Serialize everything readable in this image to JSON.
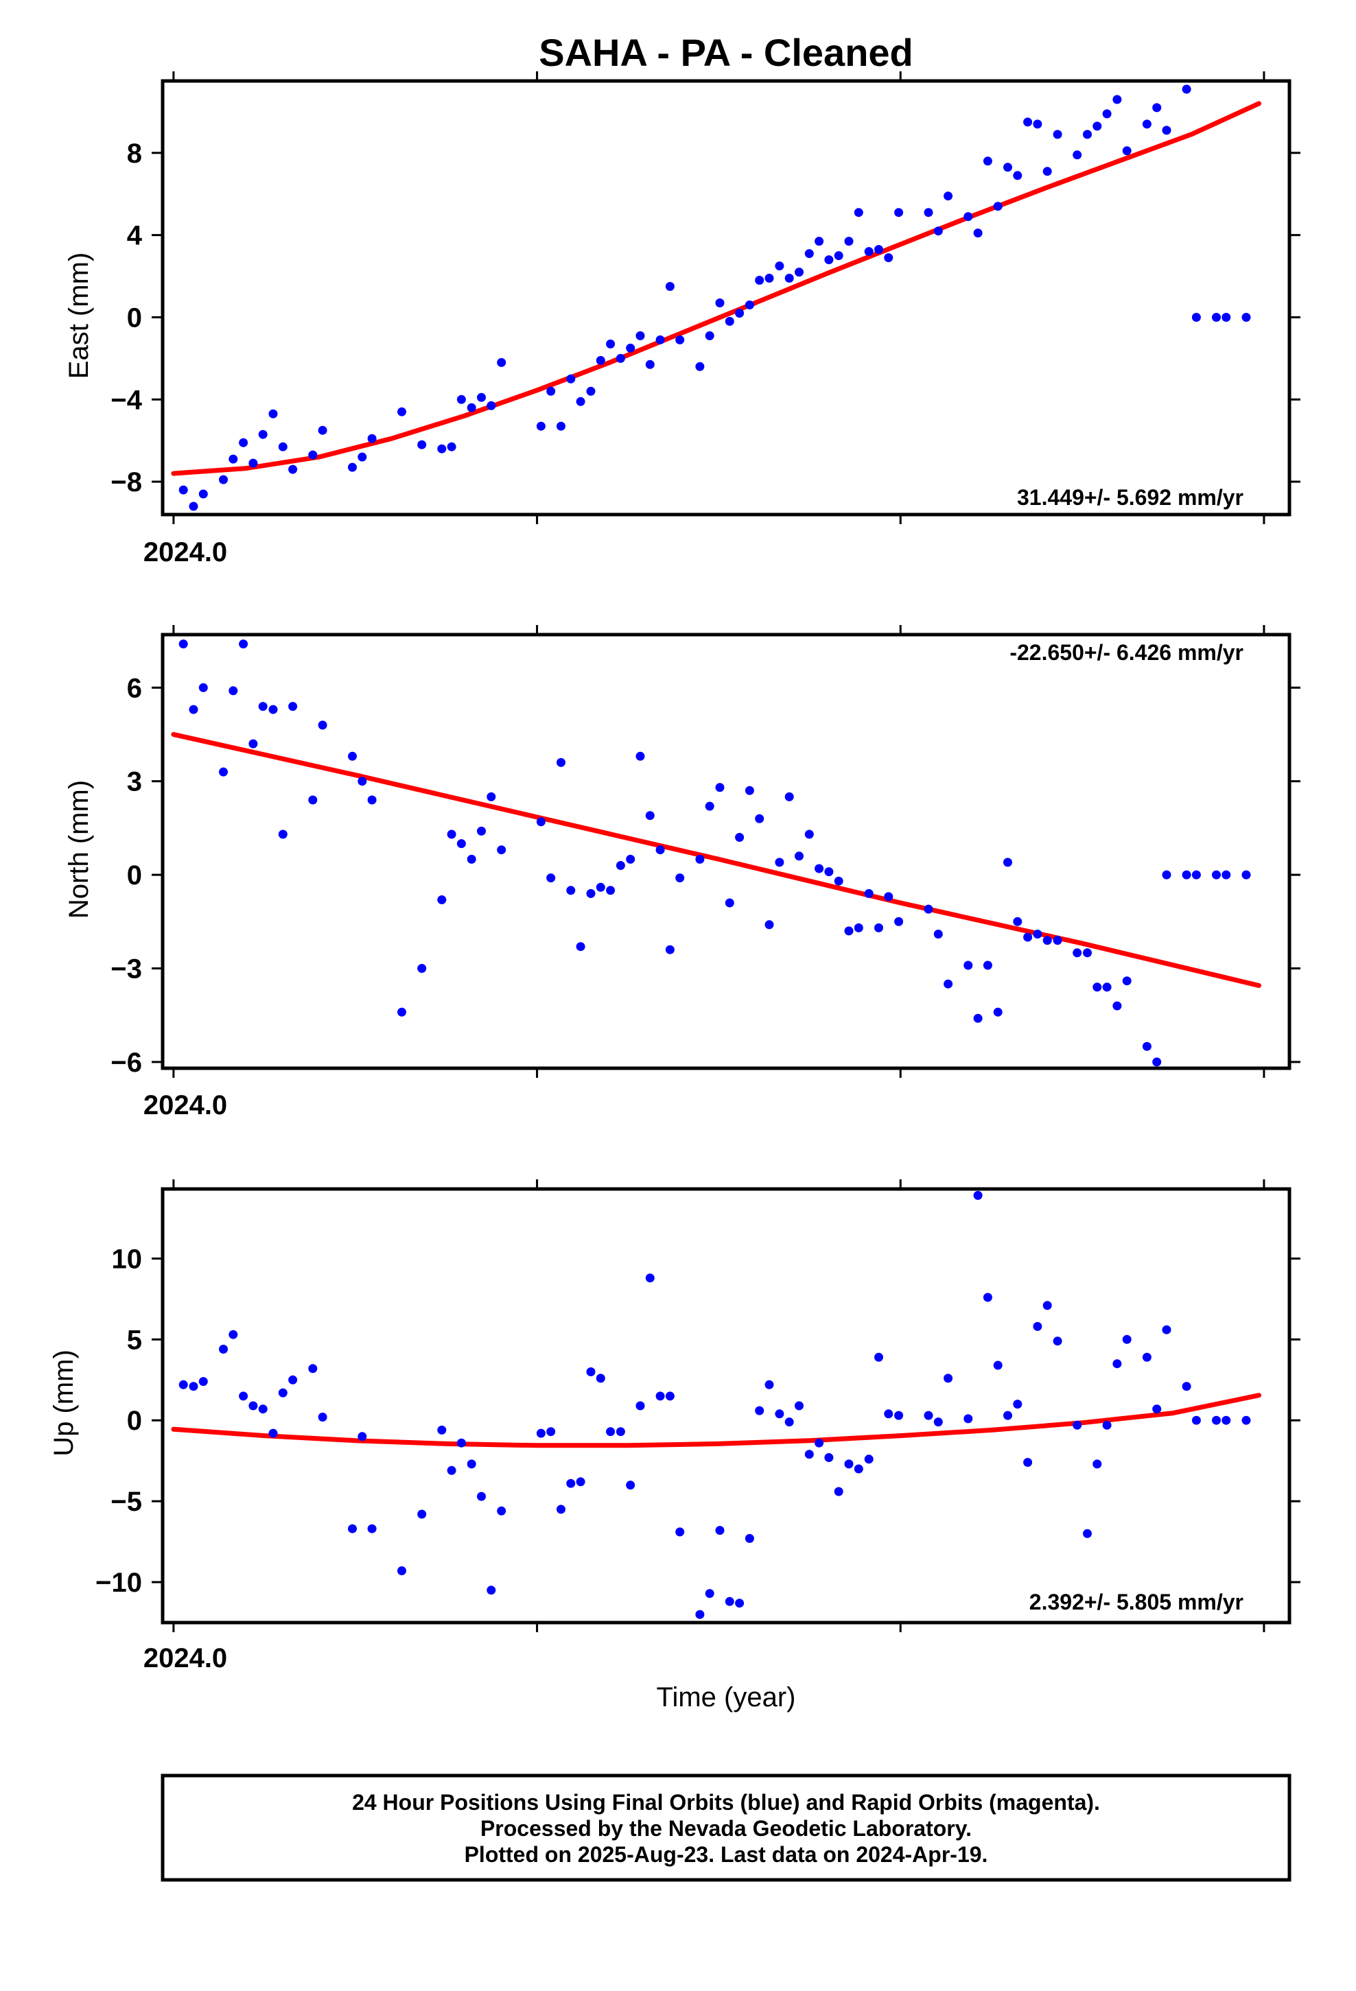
{
  "title": "SAHA  - PA - Cleaned",
  "xlabel": "Time (year)",
  "footer": [
    "24 Hour Positions Using Final Orbits (blue) and Rapid Orbits (magenta).",
    "Processed by the Nevada Geodetic Laboratory.",
    "Plotted on 2025-Aug-23. Last data on 2024-Apr-19."
  ],
  "colors": {
    "points": "#0000ff",
    "fit": "#ff0000",
    "frame": "#000000"
  },
  "chart_data": [
    {
      "type": "scatter",
      "ylabel": "East (mm)",
      "rate": "31.449+/- 5.692 mm/yr",
      "xlim": [
        2023.997,
        2024.307
      ],
      "ylim": [
        -9.6,
        11.5
      ],
      "x_tick_label": "2024.0",
      "y_ticks": [
        -8,
        -4,
        0,
        4,
        8
      ],
      "y_tick_labels": [
        "−8",
        "−4",
        "0",
        "4",
        "8"
      ],
      "series": [
        {
          "kind": "points",
          "x": [
            2024.0027,
            2024.0055,
            2024.0082,
            2024.0137,
            2024.0164,
            2024.0192,
            2024.0219,
            2024.0246,
            2024.0274,
            2024.0301,
            2024.0328,
            2024.0383,
            2024.041,
            2024.0492,
            2024.0519,
            2024.0546,
            2024.0628,
            2024.0683,
            2024.0738,
            2024.0765,
            2024.0792,
            2024.082,
            2024.0847,
            2024.0874,
            2024.0902,
            2024.1011,
            2024.1038,
            2024.1066,
            2024.1093,
            2024.112,
            2024.1148,
            2024.1175,
            2024.1202,
            2024.123,
            2024.1257,
            2024.1284,
            2024.1311,
            2024.1339,
            2024.1366,
            2024.1393,
            2024.1448,
            2024.1475,
            2024.1503,
            2024.153,
            2024.1557,
            2024.1585,
            2024.1612,
            2024.1639,
            2024.1667,
            2024.1694,
            2024.1721,
            2024.1749,
            2024.1776,
            2024.1803,
            2024.183,
            2024.1858,
            2024.1885,
            2024.1913,
            2024.194,
            2024.1967,
            2024.1995,
            2024.2077,
            2024.2104,
            2024.2131,
            2024.2186,
            2024.2213,
            2024.224,
            2024.2268,
            2024.2295,
            2024.2322,
            2024.235,
            2024.2377,
            2024.2404,
            2024.2432,
            2024.2486,
            2024.2514,
            2024.2541,
            2024.2568,
            2024.2596,
            2024.2623,
            2024.2678,
            2024.2705,
            2024.2732,
            2024.2787,
            2024.2814,
            2024.2869,
            2024.2896,
            2024.2951
          ],
          "y": [
            -8.4,
            -9.2,
            -8.6,
            -7.9,
            -6.9,
            -6.1,
            -7.1,
            -5.7,
            -4.7,
            -6.3,
            -7.4,
            -6.7,
            -5.5,
            -7.3,
            -6.8,
            -5.9,
            -4.6,
            -6.2,
            -6.4,
            -6.3,
            -4.0,
            -4.4,
            -3.9,
            -4.3,
            -2.2,
            -5.3,
            -3.6,
            -5.3,
            -3.0,
            -4.1,
            -3.6,
            -2.1,
            -1.3,
            -2.0,
            -1.5,
            -0.9,
            -2.3,
            -1.1,
            1.5,
            -1.1,
            -2.4,
            -0.9,
            0.7,
            -0.2,
            0.2,
            0.6,
            1.8,
            1.9,
            2.5,
            1.9,
            2.2,
            3.1,
            3.7,
            2.8,
            3.0,
            3.7,
            5.1,
            3.2,
            3.3,
            2.9,
            5.1,
            5.1,
            4.2,
            5.9,
            4.9,
            4.1,
            7.6,
            5.4,
            7.3,
            6.9,
            9.5,
            9.4,
            7.1,
            8.9,
            7.9,
            8.9,
            9.3,
            9.9,
            10.6,
            8.1,
            9.4,
            10.2,
            9.1,
            11.1,
            0,
            0,
            0,
            0
          ],
          "color": "#0000ff"
        },
        {
          "kind": "fit",
          "x": [
            2024.0,
            2024.02,
            2024.04,
            2024.06,
            2024.08,
            2024.1,
            2024.12,
            2024.14,
            2024.16,
            2024.18,
            2024.2,
            2024.22,
            2024.24,
            2024.26,
            2024.28,
            2024.2986
          ],
          "y": [
            -7.6,
            -7.35,
            -6.8,
            -5.9,
            -4.8,
            -3.55,
            -2.2,
            -0.75,
            0.7,
            2.15,
            3.55,
            4.95,
            6.3,
            7.6,
            8.9,
            10.4
          ],
          "color": "#ff0000"
        }
      ]
    },
    {
      "type": "scatter",
      "ylabel": "North (mm)",
      "rate": "-22.650+/- 6.426 mm/yr",
      "xlim": [
        2023.997,
        2024.307
      ],
      "ylim": [
        -6.2,
        7.7
      ],
      "x_tick_label": "2024.0",
      "y_ticks": [
        -6,
        -3,
        0,
        3,
        6
      ],
      "y_tick_labels": [
        "−6",
        "−3",
        "0",
        "3",
        "6"
      ],
      "series": [
        {
          "kind": "points",
          "x": [
            2024.0027,
            2024.0055,
            2024.0082,
            2024.0137,
            2024.0164,
            2024.0192,
            2024.0219,
            2024.0246,
            2024.0274,
            2024.0301,
            2024.0328,
            2024.0383,
            2024.041,
            2024.0492,
            2024.0519,
            2024.0546,
            2024.0628,
            2024.0683,
            2024.0738,
            2024.0765,
            2024.0792,
            2024.082,
            2024.0847,
            2024.0874,
            2024.0902,
            2024.1011,
            2024.1038,
            2024.1066,
            2024.1093,
            2024.112,
            2024.1148,
            2024.1175,
            2024.1202,
            2024.123,
            2024.1257,
            2024.1284,
            2024.1311,
            2024.1339,
            2024.1366,
            2024.1393,
            2024.1448,
            2024.1475,
            2024.1503,
            2024.153,
            2024.1557,
            2024.1585,
            2024.1612,
            2024.1639,
            2024.1667,
            2024.1694,
            2024.1721,
            2024.1749,
            2024.1776,
            2024.1803,
            2024.183,
            2024.1858,
            2024.1885,
            2024.1913,
            2024.194,
            2024.1967,
            2024.1995,
            2024.2077,
            2024.2104,
            2024.2131,
            2024.2186,
            2024.2213,
            2024.224,
            2024.2268,
            2024.2295,
            2024.2322,
            2024.235,
            2024.2377,
            2024.2404,
            2024.2432,
            2024.2486,
            2024.2514,
            2024.2541,
            2024.2568,
            2024.2596,
            2024.2623,
            2024.2678,
            2024.2705,
            2024.2732,
            2024.2787,
            2024.2814,
            2024.2869,
            2024.2896,
            2024.2951
          ],
          "y": [
            7.4,
            5.3,
            6.0,
            3.3,
            5.9,
            7.4,
            4.2,
            5.4,
            5.3,
            1.3,
            5.4,
            2.4,
            4.8,
            3.8,
            3.0,
            2.4,
            -4.4,
            -3.0,
            -0.8,
            1.3,
            1.0,
            0.5,
            1.4,
            2.5,
            0.8,
            1.7,
            -0.1,
            3.6,
            -0.5,
            -2.3,
            -0.6,
            -0.4,
            -0.5,
            0.3,
            0.5,
            3.8,
            1.9,
            0.8,
            -2.4,
            -0.1,
            0.5,
            2.2,
            2.8,
            -0.9,
            1.2,
            2.7,
            1.8,
            -1.6,
            0.4,
            2.5,
            0.6,
            1.3,
            0.2,
            0.1,
            -0.2,
            -1.8,
            -1.7,
            -0.6,
            -1.7,
            -0.7,
            -1.5,
            -1.1,
            -1.9,
            -3.5,
            -2.9,
            -4.6,
            -2.9,
            -4.4,
            0.4,
            -1.5,
            -2.0,
            -1.9,
            -2.1,
            -2.1,
            -2.5,
            -2.5,
            -3.6,
            -3.6,
            -4.2,
            -3.4,
            -5.5,
            -6.0,
            0,
            0,
            0,
            0,
            0,
            0
          ],
          "color": "#0000ff"
        },
        {
          "kind": "fit",
          "x": [
            2024.0,
            2024.05,
            2024.1,
            2024.15,
            2024.2,
            2024.25,
            2024.2986
          ],
          "y": [
            4.5,
            3.2,
            1.85,
            0.5,
            -0.9,
            -2.2,
            -3.55
          ],
          "color": "#ff0000"
        }
      ]
    },
    {
      "type": "scatter",
      "ylabel": "Up (mm)",
      "rate": "2.392+/- 5.805 mm/yr",
      "xlim": [
        2023.997,
        2024.307
      ],
      "ylim": [
        -12.5,
        14.3
      ],
      "x_tick_label": "2024.0",
      "y_ticks": [
        -10,
        -5,
        0,
        5,
        10
      ],
      "y_tick_labels": [
        "−10",
        "−5",
        "0",
        "5",
        "10"
      ],
      "series": [
        {
          "kind": "points",
          "x": [
            2024.0027,
            2024.0055,
            2024.0082,
            2024.0137,
            2024.0164,
            2024.0192,
            2024.0219,
            2024.0246,
            2024.0274,
            2024.0301,
            2024.0328,
            2024.0383,
            2024.041,
            2024.0492,
            2024.0519,
            2024.0546,
            2024.0628,
            2024.0683,
            2024.0738,
            2024.0765,
            2024.0792,
            2024.082,
            2024.0847,
            2024.0874,
            2024.0902,
            2024.1011,
            2024.1038,
            2024.1066,
            2024.1093,
            2024.112,
            2024.1148,
            2024.1175,
            2024.1202,
            2024.123,
            2024.1257,
            2024.1284,
            2024.1311,
            2024.1339,
            2024.1366,
            2024.1393,
            2024.1448,
            2024.1475,
            2024.1503,
            2024.153,
            2024.1557,
            2024.1585,
            2024.1612,
            2024.1639,
            2024.1667,
            2024.1694,
            2024.1721,
            2024.1749,
            2024.1776,
            2024.1803,
            2024.183,
            2024.1858,
            2024.1885,
            2024.1913,
            2024.194,
            2024.1967,
            2024.1995,
            2024.2077,
            2024.2104,
            2024.2131,
            2024.2186,
            2024.2213,
            2024.224,
            2024.2268,
            2024.2295,
            2024.2322,
            2024.235,
            2024.2377,
            2024.2404,
            2024.2432,
            2024.2486,
            2024.2514,
            2024.2541,
            2024.2568,
            2024.2596,
            2024.2623,
            2024.2678,
            2024.2705,
            2024.2732,
            2024.2787,
            2024.2814,
            2024.2869,
            2024.2896,
            2024.2951
          ],
          "y": [
            2.2,
            2.1,
            2.4,
            4.4,
            5.3,
            1.5,
            0.9,
            0.7,
            -0.8,
            1.7,
            2.5,
            3.2,
            0.2,
            -6.7,
            -1.0,
            -6.7,
            -9.3,
            -5.8,
            -0.6,
            -3.1,
            -1.4,
            -2.7,
            -4.7,
            -10.5,
            -5.6,
            -0.8,
            -0.7,
            -5.5,
            -3.9,
            -3.8,
            3.0,
            2.6,
            -0.7,
            -0.7,
            -4.0,
            0.9,
            8.8,
            1.5,
            1.5,
            -6.9,
            -12.0,
            -10.7,
            -6.8,
            -11.2,
            -11.3,
            -7.3,
            0.6,
            2.2,
            0.4,
            -0.1,
            0.9,
            -2.1,
            -1.4,
            -2.3,
            -4.4,
            -2.7,
            -3.0,
            -2.4,
            3.9,
            0.4,
            0.3,
            0.3,
            -0.1,
            2.6,
            0.1,
            13.9,
            7.6,
            3.4,
            0.3,
            1.0,
            -2.6,
            5.8,
            7.1,
            4.9,
            -0.3,
            -7.0,
            -2.7,
            -0.3,
            3.5,
            5.0,
            3.9,
            0.7,
            5.6,
            2.1,
            0,
            0,
            0,
            0
          ],
          "color": "#0000ff"
        },
        {
          "kind": "fit",
          "x": [
            2024.0,
            2024.025,
            2024.05,
            2024.075,
            2024.1,
            2024.125,
            2024.15,
            2024.175,
            2024.2,
            2024.225,
            2024.25,
            2024.275,
            2024.2986
          ],
          "y": [
            -0.55,
            -0.95,
            -1.25,
            -1.45,
            -1.55,
            -1.55,
            -1.45,
            -1.25,
            -0.95,
            -0.6,
            -0.15,
            0.45,
            1.55
          ],
          "color": "#ff0000"
        }
      ]
    }
  ]
}
